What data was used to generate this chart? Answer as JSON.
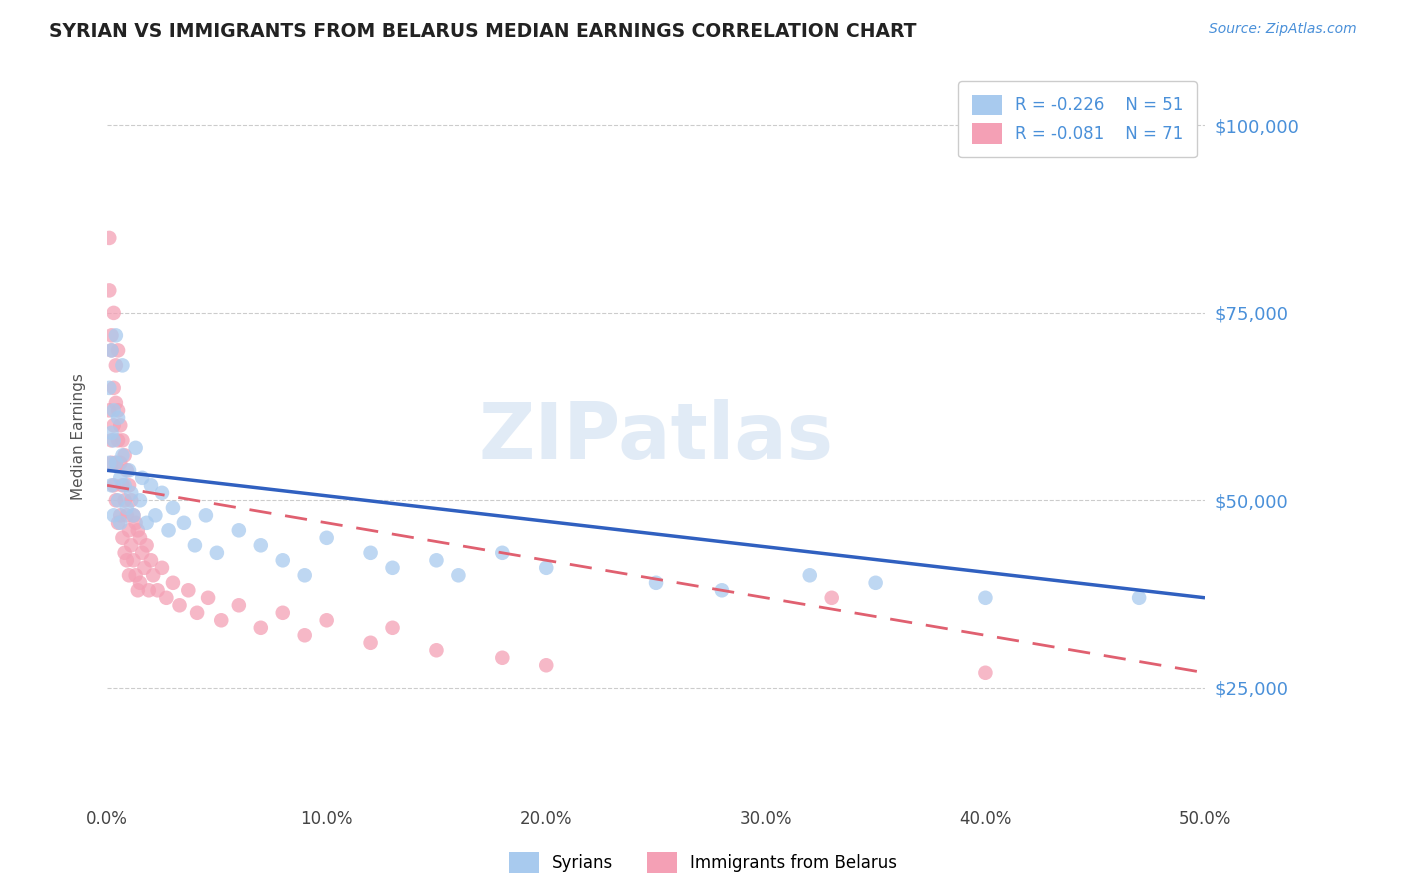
{
  "title": "SYRIAN VS IMMIGRANTS FROM BELARUS MEDIAN EARNINGS CORRELATION CHART",
  "source": "Source: ZipAtlas.com",
  "xlabel": "",
  "ylabel": "Median Earnings",
  "xlim": [
    0,
    0.5
  ],
  "ylim": [
    10000,
    107000
  ],
  "yticks": [
    25000,
    50000,
    75000,
    100000
  ],
  "xticks": [
    0.0,
    0.1,
    0.2,
    0.3,
    0.4,
    0.5
  ],
  "xtick_labels": [
    "0.0%",
    "10.0%",
    "20.0%",
    "30.0%",
    "40.0%",
    "50.0%"
  ],
  "ytick_labels": [
    "$25,000",
    "$50,000",
    "$75,000",
    "$100,000"
  ],
  "syrians_R": -0.226,
  "syrians_N": 51,
  "belarus_R": -0.081,
  "belarus_N": 71,
  "legend_label_syrians": "Syrians",
  "legend_label_belarus": "Immigrants from Belarus",
  "color_syrians": "#A8CAEE",
  "color_belarus": "#F4A0B5",
  "color_line_syrians": "#3060C0",
  "color_line_belarus": "#E06070",
  "color_title": "#222222",
  "color_ytick_labels": "#4A90D9",
  "color_source": "#4A90D9",
  "color_grid": "#CCCCCC",
  "color_legend_text": "#4A90D9",
  "watermark": "ZIPatlas",
  "syrians_x": [
    0.001,
    0.001,
    0.002,
    0.002,
    0.002,
    0.003,
    0.003,
    0.003,
    0.004,
    0.004,
    0.005,
    0.005,
    0.006,
    0.006,
    0.007,
    0.007,
    0.008,
    0.009,
    0.01,
    0.011,
    0.012,
    0.013,
    0.015,
    0.016,
    0.018,
    0.02,
    0.022,
    0.025,
    0.028,
    0.03,
    0.035,
    0.04,
    0.045,
    0.05,
    0.06,
    0.07,
    0.08,
    0.09,
    0.1,
    0.12,
    0.13,
    0.15,
    0.16,
    0.18,
    0.2,
    0.25,
    0.28,
    0.32,
    0.35,
    0.4,
    0.47
  ],
  "syrians_y": [
    55000,
    65000,
    52000,
    59000,
    70000,
    58000,
    48000,
    62000,
    55000,
    72000,
    50000,
    61000,
    53000,
    47000,
    56000,
    68000,
    52000,
    49000,
    54000,
    51000,
    48000,
    57000,
    50000,
    53000,
    47000,
    52000,
    48000,
    51000,
    46000,
    49000,
    47000,
    44000,
    48000,
    43000,
    46000,
    44000,
    42000,
    40000,
    45000,
    43000,
    41000,
    42000,
    40000,
    43000,
    41000,
    39000,
    38000,
    40000,
    39000,
    37000,
    37000
  ],
  "belarus_x": [
    0.001,
    0.001,
    0.001,
    0.002,
    0.002,
    0.002,
    0.002,
    0.003,
    0.003,
    0.003,
    0.003,
    0.004,
    0.004,
    0.004,
    0.004,
    0.005,
    0.005,
    0.005,
    0.005,
    0.006,
    0.006,
    0.006,
    0.007,
    0.007,
    0.007,
    0.008,
    0.008,
    0.008,
    0.009,
    0.009,
    0.009,
    0.01,
    0.01,
    0.01,
    0.011,
    0.011,
    0.012,
    0.012,
    0.013,
    0.013,
    0.014,
    0.014,
    0.015,
    0.015,
    0.016,
    0.017,
    0.018,
    0.019,
    0.02,
    0.021,
    0.023,
    0.025,
    0.027,
    0.03,
    0.033,
    0.037,
    0.041,
    0.046,
    0.052,
    0.06,
    0.07,
    0.08,
    0.09,
    0.1,
    0.12,
    0.13,
    0.15,
    0.18,
    0.2,
    0.33,
    0.4
  ],
  "belarus_y": [
    62000,
    78000,
    85000,
    55000,
    70000,
    58000,
    72000,
    65000,
    52000,
    75000,
    60000,
    68000,
    50000,
    63000,
    55000,
    62000,
    58000,
    47000,
    70000,
    55000,
    60000,
    48000,
    58000,
    52000,
    45000,
    56000,
    50000,
    43000,
    54000,
    48000,
    42000,
    52000,
    46000,
    40000,
    50000,
    44000,
    48000,
    42000,
    47000,
    40000,
    46000,
    38000,
    45000,
    39000,
    43000,
    41000,
    44000,
    38000,
    42000,
    40000,
    38000,
    41000,
    37000,
    39000,
    36000,
    38000,
    35000,
    37000,
    34000,
    36000,
    33000,
    35000,
    32000,
    34000,
    31000,
    33000,
    30000,
    29000,
    28000,
    37000,
    27000
  ],
  "line_syrians_x0": 0.0,
  "line_syrians_x1": 0.5,
  "line_syrians_y0": 54000,
  "line_syrians_y1": 37000,
  "line_belarus_x0": 0.0,
  "line_belarus_x1": 0.5,
  "line_belarus_y0": 52000,
  "line_belarus_y1": 27000
}
